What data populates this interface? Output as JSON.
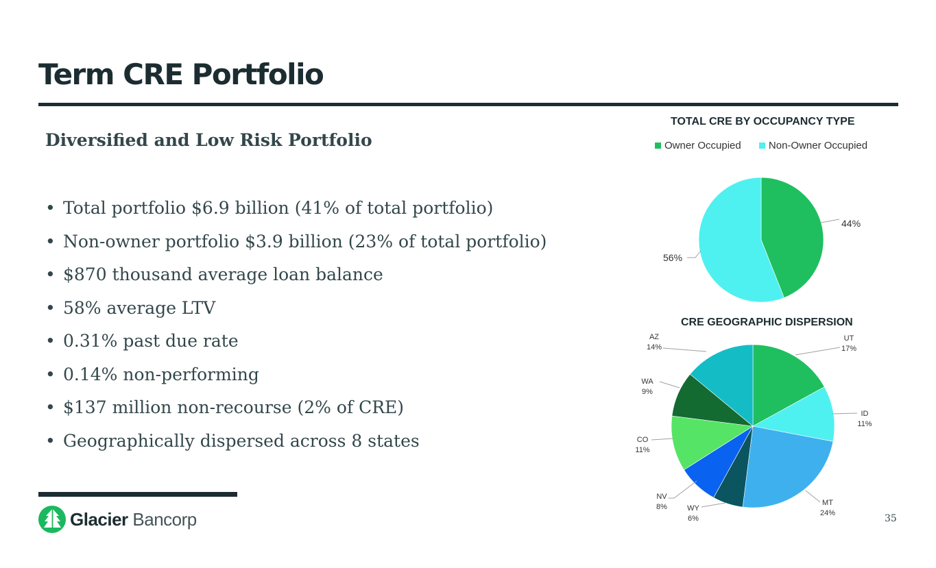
{
  "header": {
    "title": "Term CRE Portfolio"
  },
  "content": {
    "subtitle": "Diversified and Low Risk Portfolio",
    "bullets": [
      "Total portfolio $6.9 billion (41% of total portfolio)",
      "Non-owner portfolio $3.9 billion (23% of total portfolio)",
      "$870 thousand average loan balance",
      "58% average LTV",
      "0.31% past due rate",
      "0.14% non-performing",
      "$137 million non-recourse (2% of CRE)",
      "Geographically dispersed across 8 states"
    ]
  },
  "footer": {
    "logo_name_bold": "Glacier",
    "logo_name_light": "Bancorp",
    "page_number": "35"
  },
  "chart_data": [
    {
      "type": "pie",
      "title": "TOTAL CRE BY OCCUPANCY TYPE",
      "legend_position": "top",
      "categories": [
        "Owner Occupied",
        "Non-Owner Occupied"
      ],
      "values": [
        44,
        56
      ],
      "data_labels": [
        "44%",
        "56%"
      ],
      "colors": [
        "#1fbf5f",
        "#4ff0f0"
      ]
    },
    {
      "type": "pie",
      "title": "CRE GEOGRAPHIC DISPERSION",
      "categories": [
        "UT",
        "ID",
        "MT",
        "WY",
        "NV",
        "CO",
        "WA",
        "AZ"
      ],
      "values": [
        17,
        11,
        24,
        6,
        8,
        11,
        9,
        14
      ],
      "data_labels": [
        "17%",
        "11%",
        "24%",
        "6%",
        "8%",
        "11%",
        "9%",
        "14%"
      ],
      "colors": [
        "#1fbf5f",
        "#4ff0f0",
        "#3fb0ee",
        "#0a5560",
        "#0a63f0",
        "#55e465",
        "#136b32",
        "#14bcc6"
      ]
    }
  ]
}
